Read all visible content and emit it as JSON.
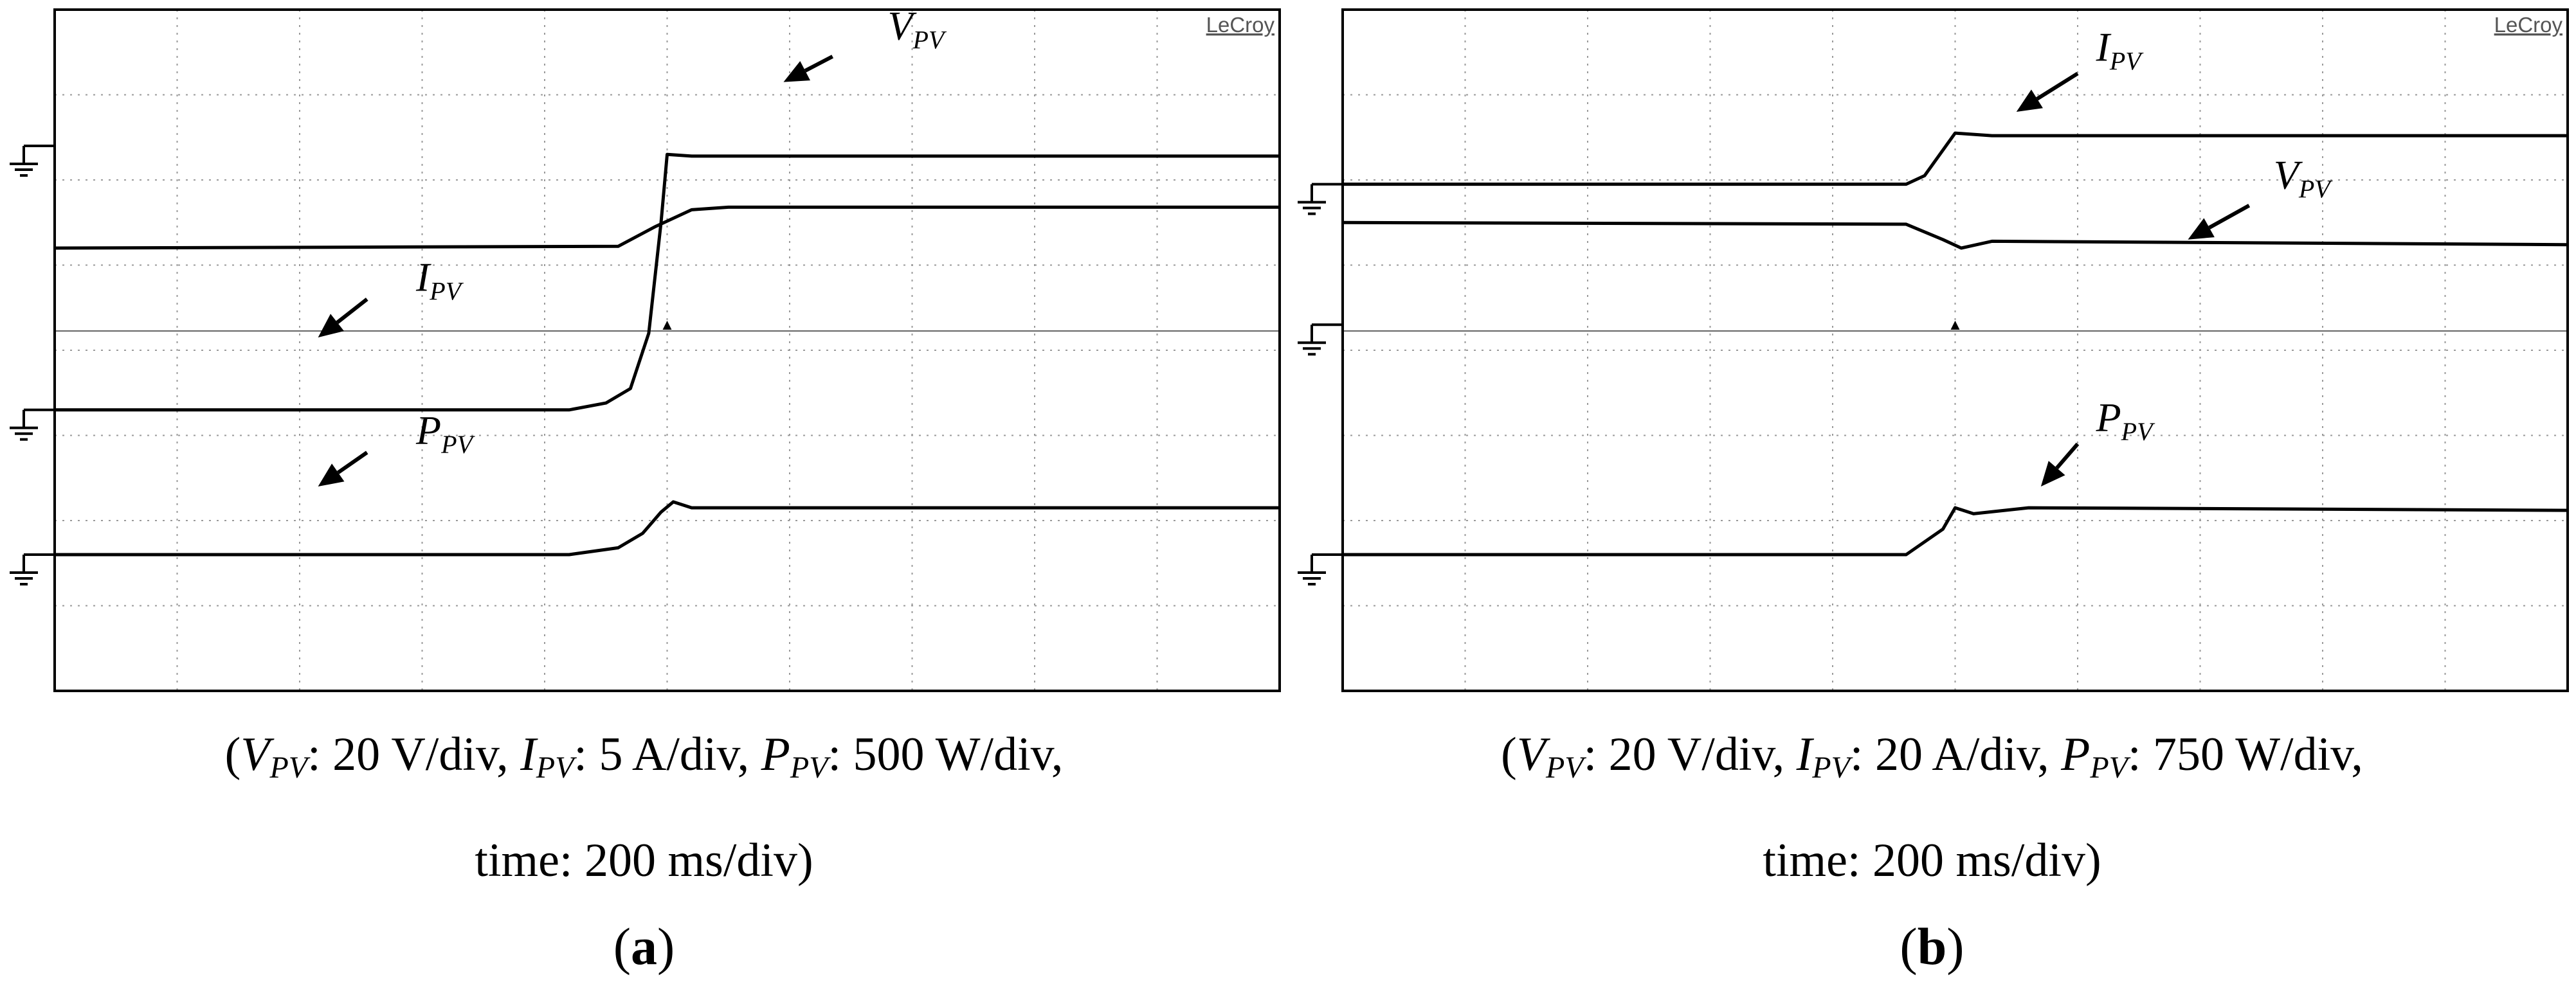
{
  "chart_data": [
    {
      "type": "line",
      "panel_label": "a",
      "brand": "LeCroy",
      "x_unit": "time",
      "time_per_div": "200 ms/div",
      "divisions_x": 10,
      "divisions_y": 8,
      "trigger_x": 5.0,
      "caption_line1": [
        {
          "sym": "V",
          "sub": "PV",
          "rest": ": 20 V/div, "
        },
        {
          "sym": "I",
          "sub": "PV",
          "rest": ": 5 A/div, "
        },
        {
          "sym": "P",
          "sub": "PV",
          "rest": ": 500 W/div,"
        }
      ],
      "caption_line2": "time: 200 ms/div)",
      "series": [
        {
          "name": "V",
          "sub": "PV",
          "ground_div": 1.6,
          "points": [
            [
              0,
              2.8
            ],
            [
              4.6,
              2.78
            ],
            [
              4.9,
              2.55
            ],
            [
              5.2,
              2.35
            ],
            [
              5.5,
              2.32
            ],
            [
              10,
              2.32
            ]
          ],
          "label_pos": [
            6.8,
            0.35
          ],
          "arrow_from": [
            6.35,
            0.55
          ],
          "arrow_to": [
            5.95,
            0.85
          ]
        },
        {
          "name": "I",
          "sub": "PV",
          "ground_div": 4.7,
          "points": [
            [
              0,
              4.7
            ],
            [
              4.2,
              4.7
            ],
            [
              4.5,
              4.62
            ],
            [
              4.7,
              4.45
            ],
            [
              4.85,
              3.8
            ],
            [
              4.95,
              2.5
            ],
            [
              5.0,
              1.7
            ],
            [
              5.2,
              1.72
            ],
            [
              10,
              1.72
            ]
          ],
          "label_pos": [
            2.95,
            3.3
          ],
          "arrow_from": [
            2.55,
            3.4
          ],
          "arrow_to": [
            2.15,
            3.85
          ]
        },
        {
          "name": "P",
          "sub": "PV",
          "ground_div": 6.4,
          "points": [
            [
              0,
              6.4
            ],
            [
              4.2,
              6.4
            ],
            [
              4.6,
              6.32
            ],
            [
              4.8,
              6.15
            ],
            [
              4.95,
              5.9
            ],
            [
              5.05,
              5.78
            ],
            [
              5.2,
              5.85
            ],
            [
              10,
              5.85
            ]
          ],
          "label_pos": [
            2.95,
            5.1
          ],
          "arrow_from": [
            2.55,
            5.2
          ],
          "arrow_to": [
            2.15,
            5.6
          ]
        }
      ]
    },
    {
      "type": "line",
      "panel_label": "b",
      "brand": "LeCroy",
      "x_unit": "time",
      "time_per_div": "200 ms/div",
      "divisions_x": 10,
      "divisions_y": 8,
      "trigger_x": 5.0,
      "caption_line1": [
        {
          "sym": "V",
          "sub": "PV",
          "rest": ": 20 V/div, "
        },
        {
          "sym": "I",
          "sub": "PV",
          "rest": ": 20 A/div, "
        },
        {
          "sym": "P",
          "sub": "PV",
          "rest": ": 750 W/div,"
        }
      ],
      "caption_line2": "time: 200 ms/div)",
      "series": [
        {
          "name": "I",
          "sub": "PV",
          "ground_div": 2.05,
          "points": [
            [
              0,
              2.05
            ],
            [
              4.6,
              2.05
            ],
            [
              4.75,
              1.95
            ],
            [
              5.0,
              1.45
            ],
            [
              5.3,
              1.48
            ],
            [
              10,
              1.48
            ]
          ],
          "label_pos": [
            6.15,
            0.6
          ],
          "arrow_from": [
            6.0,
            0.75
          ],
          "arrow_to": [
            5.5,
            1.2
          ]
        },
        {
          "name": "V",
          "sub": "PV",
          "ground_div": 3.7,
          "points": [
            [
              0,
              2.5
            ],
            [
              4.6,
              2.52
            ],
            [
              4.9,
              2.7
            ],
            [
              5.05,
              2.8
            ],
            [
              5.3,
              2.72
            ],
            [
              10,
              2.76
            ]
          ],
          "label_pos": [
            7.6,
            2.1
          ],
          "arrow_from": [
            7.4,
            2.3
          ],
          "arrow_to": [
            6.9,
            2.7
          ]
        },
        {
          "name": "P",
          "sub": "PV",
          "ground_div": 6.4,
          "points": [
            [
              0,
              6.4
            ],
            [
              4.6,
              6.4
            ],
            [
              4.9,
              6.1
            ],
            [
              5.0,
              5.85
            ],
            [
              5.15,
              5.92
            ],
            [
              5.6,
              5.85
            ],
            [
              10,
              5.88
            ]
          ],
          "label_pos": [
            6.15,
            4.95
          ],
          "arrow_from": [
            6.0,
            5.1
          ],
          "arrow_to": [
            5.7,
            5.6
          ]
        }
      ]
    }
  ]
}
